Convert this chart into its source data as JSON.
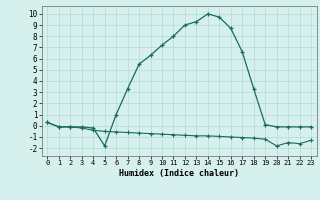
{
  "xlabel": "Humidex (Indice chaleur)",
  "background_color": "#d6f0ee",
  "grid_color": "#b8ddd8",
  "line_color": "#1a6b5a",
  "xlim": [
    -0.5,
    23.5
  ],
  "ylim": [
    -2.7,
    10.7
  ],
  "xticks": [
    0,
    1,
    2,
    3,
    4,
    5,
    6,
    7,
    8,
    9,
    10,
    11,
    12,
    13,
    14,
    15,
    16,
    17,
    18,
    19,
    20,
    21,
    22,
    23
  ],
  "yticks": [
    -2,
    -1,
    0,
    1,
    2,
    3,
    4,
    5,
    6,
    7,
    8,
    9,
    10
  ],
  "series1_x": [
    0,
    1,
    2,
    3,
    4,
    5,
    6,
    7,
    8,
    9,
    10,
    11,
    12,
    13,
    14,
    15,
    16,
    17,
    18,
    19,
    20,
    21,
    22,
    23
  ],
  "series1_y": [
    0.3,
    -0.1,
    -0.1,
    -0.1,
    -0.2,
    -1.8,
    1.0,
    3.3,
    5.5,
    6.3,
    7.2,
    8.0,
    9.0,
    9.3,
    10.0,
    9.7,
    8.7,
    6.6,
    3.3,
    0.1,
    -0.1,
    -0.1,
    -0.1,
    -0.1
  ],
  "series2_x": [
    0,
    1,
    2,
    3,
    4,
    5,
    6,
    7,
    8,
    9,
    10,
    11,
    12,
    13,
    14,
    15,
    16,
    17,
    18,
    19,
    20,
    21,
    22,
    23
  ],
  "series2_y": [
    0.3,
    -0.1,
    -0.1,
    -0.2,
    -0.4,
    -0.5,
    -0.55,
    -0.6,
    -0.65,
    -0.7,
    -0.75,
    -0.8,
    -0.85,
    -0.9,
    -0.9,
    -0.95,
    -1.0,
    -1.05,
    -1.1,
    -1.2,
    -1.8,
    -1.5,
    -1.6,
    -1.3
  ],
  "tick_fontsize": 5.0,
  "xlabel_fontsize": 6.0
}
